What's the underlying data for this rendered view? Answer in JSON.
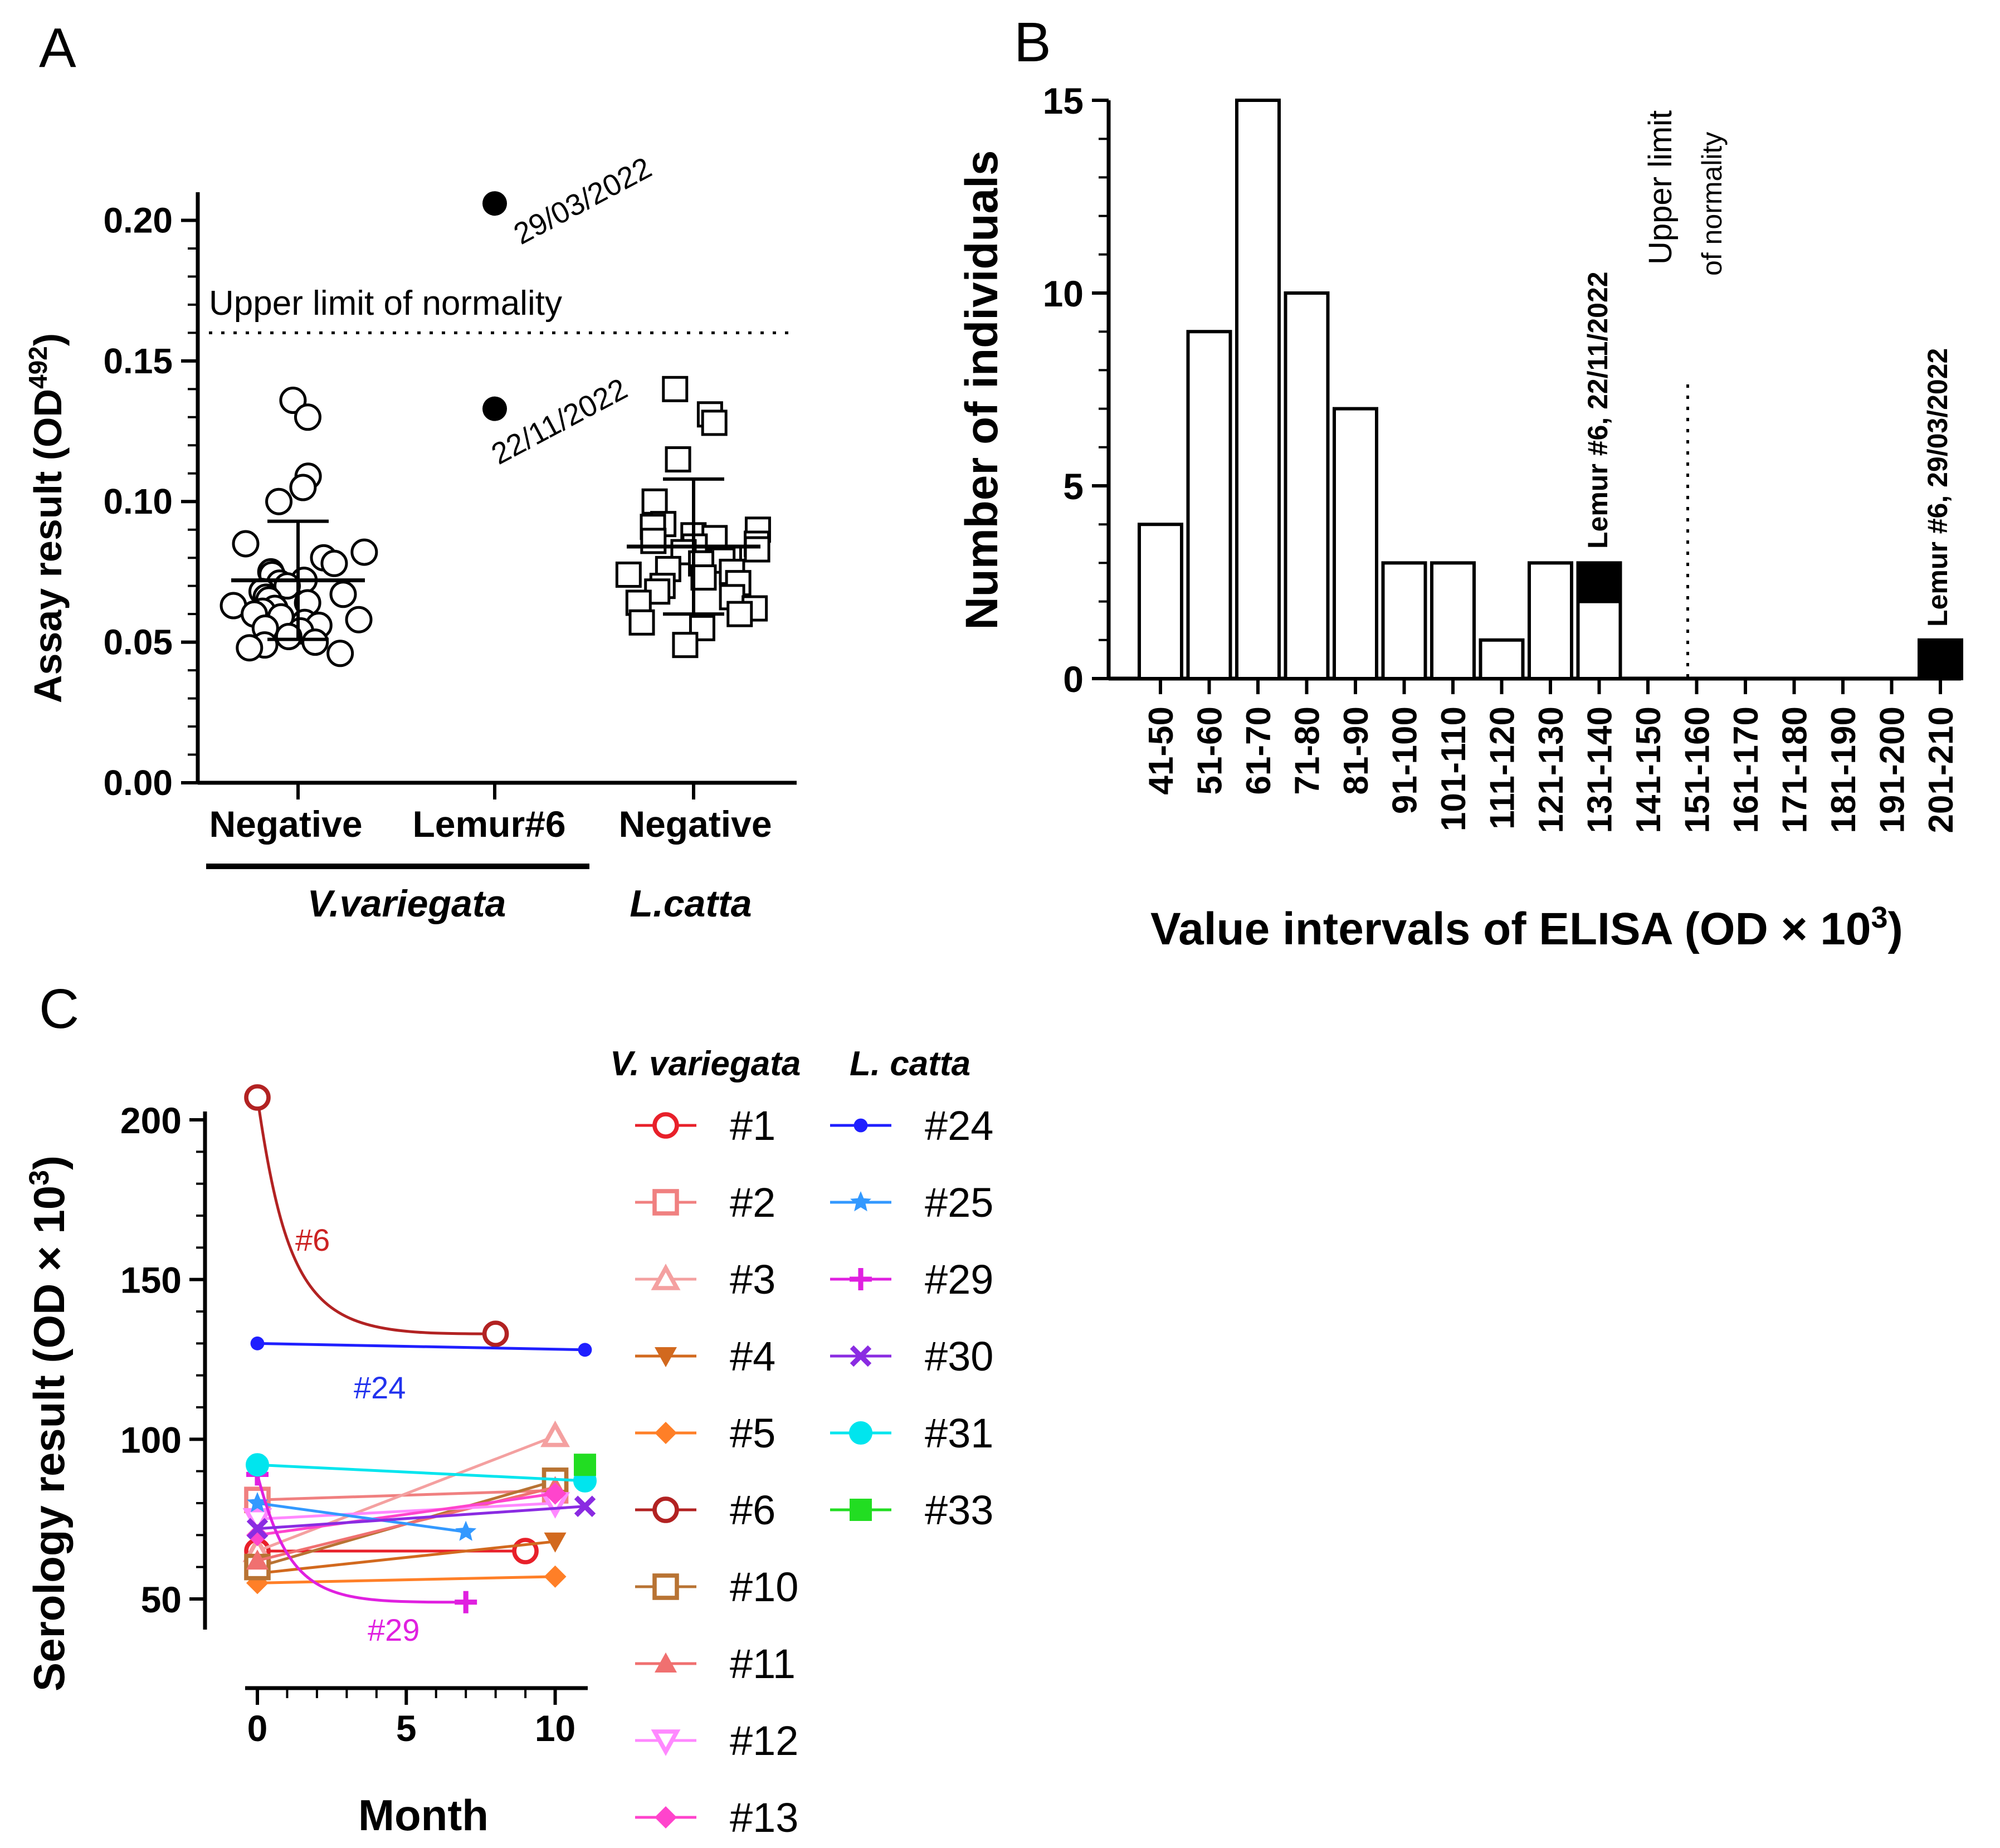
{
  "panelA": {
    "letter": "A",
    "ylabel": "Assay result (OD",
    "ylabel_sup": "492",
    "ylabel_close": ")",
    "yticks": [
      "0.00",
      "0.05",
      "0.10",
      "0.15",
      "0.20"
    ],
    "groups": [
      "Negative",
      "Lemur#6",
      "Negative"
    ],
    "species": [
      "V.variegata",
      "L.catta"
    ],
    "threshold_label": "Upper limit of normality",
    "date1": "29/03/2022",
    "date2": "22/11/2022"
  },
  "panelB": {
    "letter": "B",
    "ylabel": "Number of individuals",
    "xlabel": "Value intervals of ELISA (OD × 10",
    "xlabel_sup": "3",
    "xlabel_close": ")",
    "yticks": [
      "0",
      "5",
      "10",
      "15"
    ],
    "threshold_label_1": "Upper limit",
    "threshold_label_2": "of normality",
    "annot1": "Lemur #6, 22/11/2022",
    "annot2": "Lemur #6, 29/03/2022"
  },
  "panelC": {
    "letter": "C",
    "ylabel": "Serology result (OD × 10",
    "ylabel_sup": "3",
    "ylabel_close": ")",
    "xlabel": "Month",
    "yticks": [
      "50",
      "100",
      "150",
      "200"
    ],
    "xticks": [
      "0",
      "5",
      "10"
    ],
    "legend_head1": "V. variegata",
    "legend_head2": "L. catta",
    "label6": "#6",
    "label24": "#24",
    "label29": "#29"
  },
  "chart_data": [
    {
      "type": "scatter",
      "title": "A",
      "ylabel": "Assay result (OD492)",
      "ylim": [
        0,
        0.21
      ],
      "threshold": 0.16,
      "categories": [
        "Negative (V.variegata)",
        "Lemur#6",
        "Negative (L.catta)"
      ],
      "series": [
        {
          "name": "V.variegata negative",
          "marker": "circle",
          "values": [
            0.136,
            0.13,
            0.109,
            0.105,
            0.1,
            0.085,
            0.082,
            0.08,
            0.078,
            0.075,
            0.074,
            0.072,
            0.071,
            0.07,
            0.068,
            0.067,
            0.066,
            0.065,
            0.064,
            0.063,
            0.062,
            0.061,
            0.06,
            0.059,
            0.058,
            0.057,
            0.056,
            0.055,
            0.054,
            0.052,
            0.05,
            0.049,
            0.048,
            0.046
          ],
          "mean": 0.072,
          "sd": 0.021
        },
        {
          "name": "Lemur#6",
          "marker": "filled-circle",
          "points": [
            {
              "date": "29/03/2022",
              "value": 0.206
            },
            {
              "date": "22/11/2022",
              "value": 0.133
            }
          ]
        },
        {
          "name": "L.catta negative",
          "marker": "square",
          "values": [
            0.14,
            0.131,
            0.128,
            0.115,
            0.1,
            0.092,
            0.091,
            0.09,
            0.088,
            0.087,
            0.086,
            0.085,
            0.084,
            0.083,
            0.082,
            0.08,
            0.079,
            0.078,
            0.076,
            0.075,
            0.074,
            0.073,
            0.071,
            0.07,
            0.068,
            0.066,
            0.064,
            0.062,
            0.06,
            0.057,
            0.055,
            0.049
          ],
          "mean": 0.084,
          "sd": 0.024
        }
      ]
    },
    {
      "type": "bar",
      "title": "B",
      "xlabel": "Value intervals of ELISA (OD × 10^3)",
      "ylabel": "Number of individuals",
      "ylim": [
        0,
        15
      ],
      "categories": [
        "41-50",
        "51-60",
        "61-70",
        "71-80",
        "81-90",
        "91-100",
        "101-110",
        "111-120",
        "121-130",
        "131-140",
        "141-150",
        "151-160",
        "161-170",
        "171-180",
        "181-190",
        "191-200",
        "201-210"
      ],
      "series": [
        {
          "name": "Negative",
          "values": [
            4,
            9,
            15,
            10,
            7,
            3,
            3,
            1,
            3,
            2,
            0,
            0,
            0,
            0,
            0,
            0,
            0
          ]
        },
        {
          "name": "Lemur #6",
          "values": [
            0,
            0,
            0,
            0,
            0,
            0,
            0,
            0,
            0,
            1,
            0,
            0,
            0,
            0,
            0,
            0,
            1
          ]
        }
      ],
      "threshold_between": [
        "151-160",
        "151-160"
      ],
      "annotations": [
        "Lemur #6, 22/11/2022",
        "Lemur #6, 29/03/2022"
      ]
    },
    {
      "type": "line",
      "title": "C",
      "xlabel": "Month",
      "ylabel": "Serology result (OD × 10^3)",
      "ylim": [
        40,
        210
      ],
      "xlim": [
        0,
        11
      ],
      "series": [
        {
          "name": "#1",
          "species": "V. variegata",
          "color": "#e8202a",
          "marker": "circle-open",
          "points": [
            [
              0,
              65
            ],
            [
              9,
              65
            ]
          ]
        },
        {
          "name": "#2",
          "species": "V. variegata",
          "color": "#f08080",
          "marker": "square-open",
          "points": [
            [
              0,
              81
            ],
            [
              10,
              84
            ]
          ]
        },
        {
          "name": "#3",
          "species": "V. variegata",
          "color": "#f4a0a0",
          "marker": "triangle-up-open",
          "points": [
            [
              0,
              65
            ],
            [
              10,
              101
            ]
          ]
        },
        {
          "name": "#4",
          "species": "V. variegata",
          "color": "#d2691e",
          "marker": "triangle-down",
          "points": [
            [
              0,
              58
            ],
            [
              10,
              68
            ]
          ]
        },
        {
          "name": "#5",
          "species": "V. variegata",
          "color": "#ff7f27",
          "marker": "diamond",
          "points": [
            [
              0,
              55
            ],
            [
              10,
              57
            ]
          ]
        },
        {
          "name": "#6",
          "species": "V. variegata",
          "color": "#b22222",
          "marker": "circle-open",
          "points": [
            [
              0,
              207
            ],
            [
              8,
              133
            ]
          ]
        },
        {
          "name": "#10",
          "species": "V. variegata",
          "color": "#b87333",
          "marker": "square-open",
          "points": [
            [
              0,
              60
            ],
            [
              10,
              87
            ]
          ]
        },
        {
          "name": "#11",
          "species": "V. variegata",
          "color": "#f07070",
          "marker": "triangle-up",
          "points": [
            [
              0,
              62
            ],
            [
              10,
              85
            ]
          ]
        },
        {
          "name": "#12",
          "species": "V. variegata",
          "color": "#ff88ff",
          "marker": "triangle-down-open",
          "points": [
            [
              0,
              75
            ],
            [
              10,
              80
            ]
          ]
        },
        {
          "name": "#13",
          "species": "V. variegata",
          "color": "#ff44cc",
          "marker": "diamond",
          "points": [
            [
              0,
              70
            ],
            [
              10,
              83
            ]
          ]
        },
        {
          "name": "#24",
          "species": "L. catta",
          "color": "#1f1fff",
          "marker": "dot",
          "points": [
            [
              0,
              130
            ],
            [
              11,
              128
            ]
          ]
        },
        {
          "name": "#25",
          "species": "L. catta",
          "color": "#3399ff",
          "marker": "star",
          "points": [
            [
              0,
              80
            ],
            [
              7,
              71
            ]
          ]
        },
        {
          "name": "#29",
          "species": "L. catta",
          "color": "#e020e0",
          "marker": "plus",
          "points": [
            [
              0,
              89
            ],
            [
              7,
              49
            ]
          ]
        },
        {
          "name": "#30",
          "species": "L. catta",
          "color": "#8a2be2",
          "marker": "x",
          "points": [
            [
              0,
              72
            ],
            [
              11,
              79
            ]
          ]
        },
        {
          "name": "#31",
          "species": "L. catta",
          "color": "#00e5ee",
          "marker": "circle-filled",
          "points": [
            [
              0,
              92
            ],
            [
              11,
              87
            ]
          ]
        },
        {
          "name": "#33",
          "species": "L. catta",
          "color": "#22dd22",
          "marker": "square-filled",
          "points": [
            [
              11,
              92
            ]
          ]
        }
      ]
    }
  ]
}
